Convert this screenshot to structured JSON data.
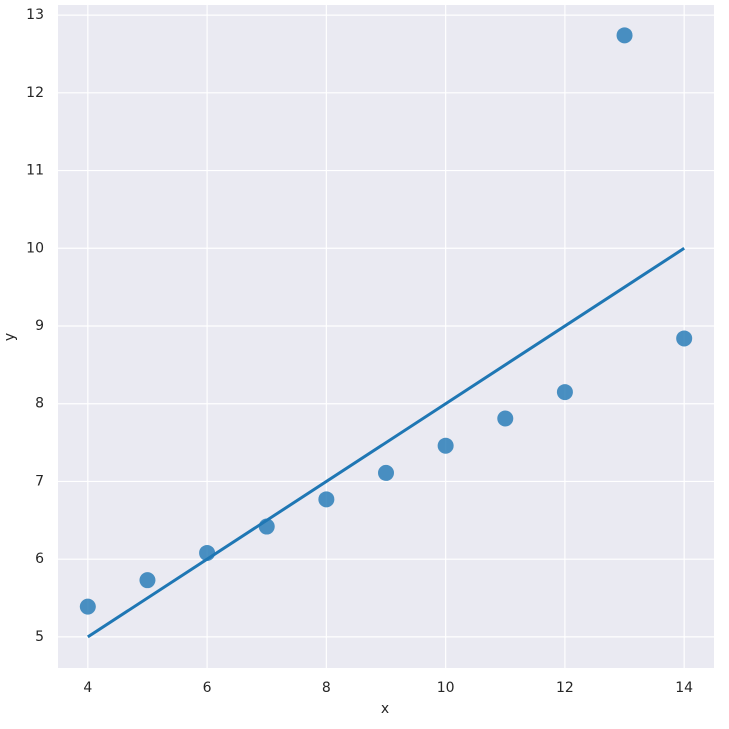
{
  "chart_data": {
    "type": "scatter",
    "x_label": "x",
    "y_label": "y",
    "x": [
      4,
      5,
      6,
      7,
      8,
      9,
      10,
      11,
      12,
      13,
      14
    ],
    "series": [
      {
        "color": "#1f77b4",
        "values": [
          5.39,
          5.73,
          6.08,
          6.42,
          6.77,
          7.11,
          7.46,
          7.81,
          8.15,
          12.74,
          8.84
        ]
      }
    ],
    "fit_line": {
      "x": [
        4,
        14
      ],
      "values": [
        5,
        10
      ],
      "color": "#1f77b4"
    },
    "xlim": [
      3.5,
      14.5
    ],
    "ylim": [
      4.6,
      13.13
    ],
    "xticks": [
      4,
      6,
      8,
      10,
      12,
      14
    ],
    "yticks": [
      5,
      6,
      7,
      8,
      9,
      10,
      11,
      12,
      13
    ],
    "grid": true
  }
}
